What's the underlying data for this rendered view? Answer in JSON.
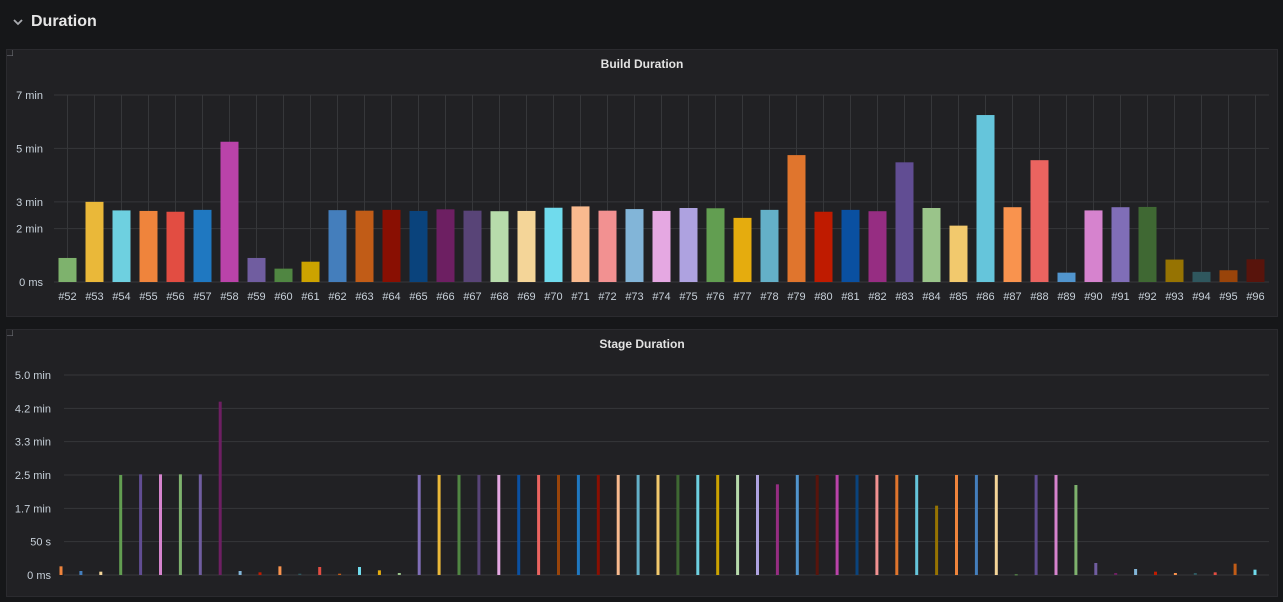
{
  "row": {
    "title": "Duration"
  },
  "colors": {
    "palette": [
      "#7eb26d",
      "#eab839",
      "#6ed0e0",
      "#ef843c",
      "#e24d42",
      "#1f78c1",
      "#ba43a9",
      "#705da0",
      "#508642",
      "#cca300",
      "#447ebc",
      "#c15c17",
      "#890f02",
      "#0a437c",
      "#6d1f62",
      "#584477",
      "#b7dbab",
      "#f4d598",
      "#70dbed",
      "#f9ba8f",
      "#f29191",
      "#82b5d8",
      "#e5a8e2",
      "#aea2e0",
      "#629e51",
      "#e5ac0e",
      "#64b0c8",
      "#e0752d",
      "#bf1b00",
      "#0a50a1",
      "#962d82",
      "#614d93",
      "#9ac48a",
      "#f2c96d",
      "#65c5db",
      "#f9934e",
      "#ea6460",
      "#5195ce",
      "#d683ce",
      "#806eb7",
      "#3f6833",
      "#967302",
      "#2f575e",
      "#99440a",
      "#58140c"
    ]
  },
  "chart_data": [
    {
      "type": "bar",
      "title": "Build Duration",
      "categories": [
        "#52",
        "#53",
        "#54",
        "#55",
        "#56",
        "#57",
        "#58",
        "#59",
        "#60",
        "#61",
        "#62",
        "#63",
        "#64",
        "#65",
        "#66",
        "#67",
        "#68",
        "#69",
        "#70",
        "#71",
        "#72",
        "#73",
        "#74",
        "#75",
        "#76",
        "#77",
        "#78",
        "#79",
        "#80",
        "#81",
        "#82",
        "#83",
        "#84",
        "#85",
        "#86",
        "#87",
        "#88",
        "#89",
        "#90",
        "#91",
        "#92",
        "#93",
        "#94",
        "#95",
        "#96"
      ],
      "values_min": [
        0.9,
        3.0,
        2.68,
        2.66,
        2.63,
        2.7,
        5.25,
        0.9,
        0.5,
        0.76,
        2.69,
        2.67,
        2.7,
        2.66,
        2.72,
        2.67,
        2.65,
        2.66,
        2.78,
        2.83,
        2.67,
        2.73,
        2.66,
        2.77,
        2.76,
        2.4,
        2.7,
        4.75,
        2.63,
        2.7,
        2.65,
        4.48,
        2.77,
        2.11,
        6.25,
        2.8,
        4.56,
        0.35,
        2.68,
        2.8,
        2.81,
        0.84,
        0.38,
        0.44,
        0.85
      ],
      "y_ticks": [
        "0 ms",
        "2 min",
        "3 min",
        "5 min",
        "7 min"
      ],
      "ylim": [
        0,
        7
      ],
      "grid": true
    },
    {
      "type": "bar",
      "title": "Stage Duration",
      "values_s": [
        13,
        6,
        5,
        150,
        151,
        151,
        151,
        151,
        260,
        6,
        4,
        13,
        2,
        12,
        2,
        12,
        7,
        3,
        150,
        150,
        150,
        150,
        150,
        150,
        150,
        150,
        150,
        150,
        150,
        150,
        150,
        150,
        150,
        150,
        150,
        150,
        136,
        150,
        150,
        150,
        150,
        150,
        150,
        150,
        104,
        150,
        150,
        150,
        1,
        150,
        150,
        135,
        18,
        3,
        9,
        5,
        3,
        3,
        4,
        17,
        8
      ],
      "y_ticks": [
        "0 ms",
        "50 s",
        "1.7 min",
        "2.5 min",
        "3.3 min",
        "4.2 min",
        "5.0 min"
      ],
      "ylim_s": [
        0,
        300
      ],
      "grid": true
    }
  ]
}
